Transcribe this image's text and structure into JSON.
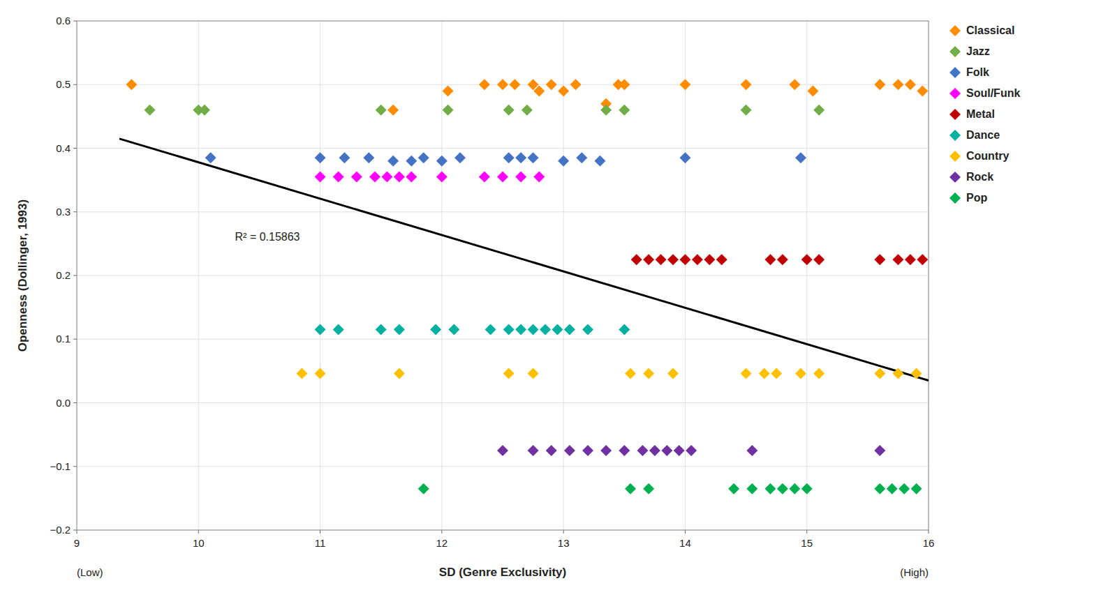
{
  "chart_data": {
    "type": "scatter",
    "ylabel": "Openness (Dollinger, 1993)",
    "xlabel": "SD (Genre Exclusivity)",
    "xlabel_low": "(Low)",
    "xlabel_high": "(High)",
    "xlim": [
      9,
      16
    ],
    "ylim": [
      -0.2,
      0.6
    ],
    "xticks": [
      9,
      10,
      11,
      12,
      13,
      14,
      15,
      16
    ],
    "yticks": [
      {
        "value": -0.2,
        "label": "−0.2"
      },
      {
        "value": -0.1,
        "label": "−0.1"
      },
      {
        "value": 0,
        "label": "0.0"
      },
      0.1,
      0.2,
      0.3,
      0.4,
      0.5,
      0.6
    ],
    "grid": true,
    "legend": "right",
    "marker": "diamond",
    "annotations": [
      {
        "text": "R² = 0.15863",
        "x": 10.3,
        "y": 0.255
      }
    ],
    "series": [
      {
        "type": "line",
        "color": "#000000",
        "x": [
          9.35,
          16.0
        ],
        "values": [
          0.415,
          0.035
        ]
      },
      {
        "name": "Classical",
        "color": "#FF8C00",
        "x": [
          9.45,
          11.6,
          12.05,
          12.35,
          12.5,
          12.6,
          12.75,
          12.8,
          12.9,
          13.0,
          13.1,
          13.35,
          13.45,
          13.5,
          14.0,
          14.5,
          14.9,
          15.05,
          15.6,
          15.75,
          15.85,
          15.95
        ],
        "values": [
          0.5,
          0.46,
          0.49,
          0.5,
          0.5,
          0.5,
          0.5,
          0.49,
          0.5,
          0.49,
          0.5,
          0.47,
          0.5,
          0.5,
          0.5,
          0.5,
          0.5,
          0.49,
          0.5,
          0.5,
          0.5,
          0.49
        ]
      },
      {
        "name": "Jazz",
        "color": "#70AD47",
        "x": [
          9.6,
          10.0,
          10.05,
          11.5,
          12.05,
          12.55,
          12.7,
          13.35,
          13.5,
          14.5,
          15.1
        ],
        "values": [
          0.46,
          0.46,
          0.46,
          0.46,
          0.46,
          0.46,
          0.46,
          0.46,
          0.46,
          0.46,
          0.46
        ]
      },
      {
        "name": "Folk",
        "color": "#4472C4",
        "x": [
          10.1,
          11.0,
          11.2,
          11.4,
          11.6,
          11.75,
          11.85,
          12.0,
          12.15,
          12.55,
          12.65,
          12.75,
          13.0,
          13.15,
          13.3,
          14.0,
          14.95
        ],
        "values": [
          0.385,
          0.385,
          0.385,
          0.385,
          0.38,
          0.38,
          0.385,
          0.38,
          0.385,
          0.385,
          0.385,
          0.385,
          0.38,
          0.385,
          0.38,
          0.385,
          0.385
        ]
      },
      {
        "name": "Soul/Funk",
        "color": "#FF00FF",
        "x": [
          11.0,
          11.15,
          11.3,
          11.45,
          11.55,
          11.65,
          11.75,
          12.0,
          12.35,
          12.5,
          12.65,
          12.8
        ],
        "values": [
          0.355,
          0.355,
          0.355,
          0.355,
          0.355,
          0.355,
          0.355,
          0.355,
          0.355,
          0.355,
          0.355,
          0.355
        ]
      },
      {
        "name": "Metal",
        "color": "#C00000",
        "x": [
          13.6,
          13.7,
          13.8,
          13.9,
          14.0,
          14.1,
          14.2,
          14.3,
          14.7,
          14.8,
          15.0,
          15.1,
          15.6,
          15.75,
          15.85,
          15.95
        ],
        "values": [
          0.225,
          0.225,
          0.225,
          0.225,
          0.225,
          0.225,
          0.225,
          0.225,
          0.225,
          0.225,
          0.225,
          0.225,
          0.225,
          0.225,
          0.225,
          0.225
        ]
      },
      {
        "name": "Dance",
        "color": "#00B0A0",
        "x": [
          11.0,
          11.15,
          11.5,
          11.65,
          11.95,
          12.1,
          12.4,
          12.55,
          12.65,
          12.75,
          12.85,
          12.95,
          13.05,
          13.2,
          13.5
        ],
        "values": [
          0.115,
          0.115,
          0.115,
          0.115,
          0.115,
          0.115,
          0.115,
          0.115,
          0.115,
          0.115,
          0.115,
          0.115,
          0.115,
          0.115,
          0.115
        ]
      },
      {
        "name": "Country",
        "color": "#FFC000",
        "x": [
          10.85,
          11.0,
          11.65,
          12.55,
          12.75,
          13.55,
          13.7,
          13.9,
          14.5,
          14.65,
          14.75,
          14.95,
          15.1,
          15.6,
          15.75,
          15.9
        ],
        "values": [
          0.046,
          0.046,
          0.046,
          0.046,
          0.046,
          0.046,
          0.046,
          0.046,
          0.046,
          0.046,
          0.046,
          0.046,
          0.046,
          0.046,
          0.046,
          0.046
        ]
      },
      {
        "name": "Rock",
        "color": "#7030A0",
        "x": [
          12.5,
          12.75,
          12.9,
          13.05,
          13.2,
          13.35,
          13.5,
          13.65,
          13.75,
          13.85,
          13.95,
          14.05,
          14.55,
          15.6
        ],
        "values": [
          -0.075,
          -0.075,
          -0.075,
          -0.075,
          -0.075,
          -0.075,
          -0.075,
          -0.075,
          -0.075,
          -0.075,
          -0.075,
          -0.075,
          -0.075,
          -0.075
        ]
      },
      {
        "name": "Pop",
        "color": "#00B050",
        "x": [
          11.85,
          13.55,
          13.7,
          14.4,
          14.55,
          14.7,
          14.8,
          14.9,
          15.0,
          15.6,
          15.7,
          15.8,
          15.9
        ],
        "values": [
          -0.135,
          -0.135,
          -0.135,
          -0.135,
          -0.135,
          -0.135,
          -0.135,
          -0.135,
          -0.135,
          -0.135,
          -0.135,
          -0.135,
          -0.135
        ]
      }
    ]
  }
}
